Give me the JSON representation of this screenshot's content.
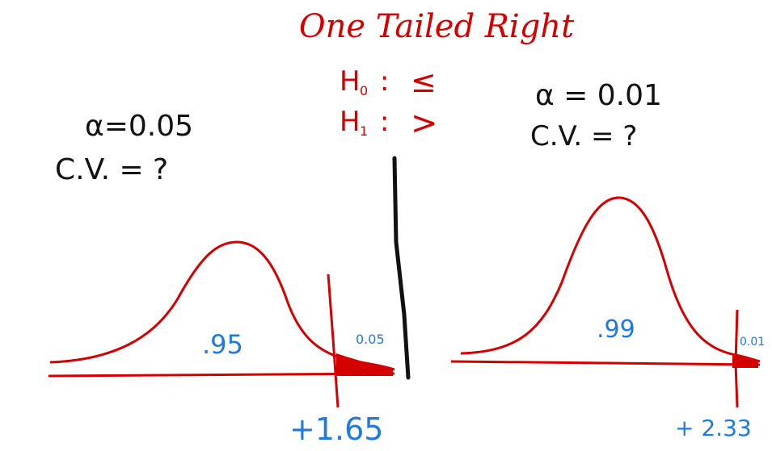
{
  "title": "One Tailed Right",
  "hypotheses": {
    "h0": {
      "symbol": "H",
      "subscript": "0",
      "sep": ":",
      "relation": "≤"
    },
    "h1": {
      "symbol": "H",
      "subscript": "1",
      "sep": ":",
      "relation": ">"
    }
  },
  "left_panel": {
    "alpha_text": "α=0.05",
    "cv_text": "C.V. = ?",
    "center_area": ".95",
    "tail_area": "0.05",
    "critical_value": "+1.65"
  },
  "right_panel": {
    "alpha_text": "α = 0.01",
    "cv_text": "C.V. = ?",
    "center_area": ".99",
    "tail_area": "0.01",
    "critical_value": "+ 2.33"
  },
  "colors": {
    "ink_red": "#d40000",
    "ink_blue": "#1f7ae0",
    "ink_black": "#111111"
  }
}
